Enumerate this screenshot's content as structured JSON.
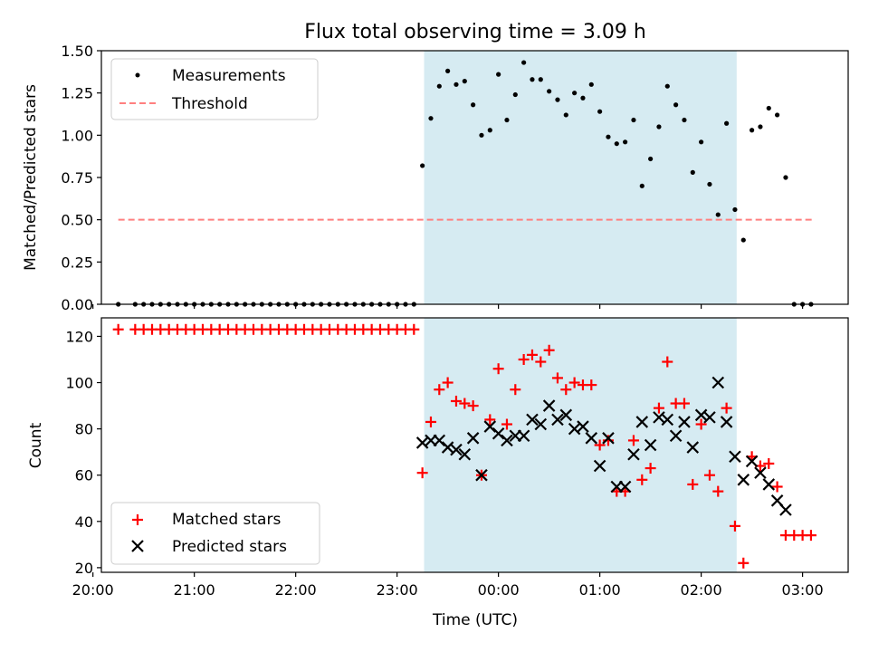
{
  "chart_data": [
    {
      "type": "scatter",
      "title": "Flux total observing time = 3.09 h",
      "xlabel": "",
      "ylabel": "Matched/Predicted stars",
      "ylim": [
        0,
        1.5
      ],
      "yticks": [
        "0.00",
        "0.25",
        "0.50",
        "0.75",
        "1.00",
        "1.25",
        "1.50"
      ],
      "xlim": [
        "20:05",
        "03:27"
      ],
      "grid": false,
      "legend_location": "upper-left",
      "shaded_interval": {
        "start": "23:16",
        "end": "02:21",
        "color": "#add8e6"
      },
      "threshold": {
        "name": "Threshold",
        "value": 0.5,
        "x_start": "20:15",
        "x_end": "03:07",
        "color": "#ff7f7f"
      },
      "series": [
        {
          "name": "Measurements",
          "color": "#000000",
          "x": [
            "20:15",
            "20:25",
            "20:30",
            "20:35",
            "20:40",
            "20:45",
            "20:50",
            "20:55",
            "21:00",
            "21:05",
            "21:10",
            "21:15",
            "21:20",
            "21:25",
            "21:30",
            "21:35",
            "21:40",
            "21:45",
            "21:50",
            "21:55",
            "22:00",
            "22:05",
            "22:10",
            "22:15",
            "22:20",
            "22:25",
            "22:30",
            "22:35",
            "22:40",
            "22:45",
            "22:50",
            "22:55",
            "23:00",
            "23:05",
            "23:10",
            "23:15",
            "23:20",
            "23:25",
            "23:30",
            "23:35",
            "23:40",
            "23:45",
            "23:50",
            "23:55",
            "00:00",
            "00:05",
            "00:10",
            "00:15",
            "00:20",
            "00:25",
            "00:30",
            "00:35",
            "00:40",
            "00:45",
            "00:50",
            "00:55",
            "01:00",
            "01:05",
            "01:10",
            "01:15",
            "01:20",
            "01:25",
            "01:30",
            "01:35",
            "01:40",
            "01:45",
            "01:50",
            "01:55",
            "02:00",
            "02:05",
            "02:10",
            "02:15",
            "02:20",
            "02:25",
            "02:30",
            "02:35",
            "02:40",
            "02:45",
            "02:50",
            "02:55",
            "03:00",
            "03:05"
          ],
          "y": [
            0,
            0,
            0,
            0,
            0,
            0,
            0,
            0,
            0,
            0,
            0,
            0,
            0,
            0,
            0,
            0,
            0,
            0,
            0,
            0,
            0,
            0,
            0,
            0,
            0,
            0,
            0,
            0,
            0,
            0,
            0,
            0,
            0,
            0,
            0,
            0.82,
            1.1,
            1.29,
            1.38,
            1.3,
            1.32,
            1.18,
            1.0,
            1.03,
            1.36,
            1.09,
            1.24,
            1.43,
            1.33,
            1.33,
            1.26,
            1.21,
            1.12,
            1.25,
            1.22,
            1.3,
            1.14,
            0.99,
            0.95,
            0.96,
            1.09,
            0.7,
            0.86,
            1.05,
            1.29,
            1.18,
            1.09,
            0.78,
            0.96,
            0.71,
            0.53,
            1.07,
            0.56,
            0.38,
            1.03,
            1.05,
            1.16,
            1.12,
            0.75,
            0,
            0,
            0
          ]
        }
      ]
    },
    {
      "type": "scatter",
      "title": "",
      "xlabel": "Time (UTC)",
      "ylabel": "Count",
      "ylim": [
        18,
        128
      ],
      "yticks": [
        "20",
        "40",
        "60",
        "80",
        "100",
        "120"
      ],
      "xlim": [
        "20:05",
        "03:27"
      ],
      "xticks": [
        "20:00",
        "21:00",
        "22:00",
        "23:00",
        "00:00",
        "01:00",
        "02:00",
        "03:00"
      ],
      "grid": false,
      "legend_location": "lower-left",
      "shaded_interval": {
        "start": "23:16",
        "end": "02:21",
        "color": "#add8e6"
      },
      "series": [
        {
          "name": "Matched stars",
          "marker": "plus",
          "color": "#ff0000",
          "x": [
            "20:15",
            "20:25",
            "20:30",
            "20:35",
            "20:40",
            "20:45",
            "20:50",
            "20:55",
            "21:00",
            "21:05",
            "21:10",
            "21:15",
            "21:20",
            "21:25",
            "21:30",
            "21:35",
            "21:40",
            "21:45",
            "21:50",
            "21:55",
            "22:00",
            "22:05",
            "22:10",
            "22:15",
            "22:20",
            "22:25",
            "22:30",
            "22:35",
            "22:40",
            "22:45",
            "22:50",
            "22:55",
            "23:00",
            "23:05",
            "23:10",
            "23:15",
            "23:20",
            "23:25",
            "23:30",
            "23:35",
            "23:40",
            "23:45",
            "23:50",
            "23:55",
            "00:00",
            "00:05",
            "00:10",
            "00:15",
            "00:20",
            "00:25",
            "00:30",
            "00:35",
            "00:40",
            "00:45",
            "00:50",
            "00:55",
            "01:00",
            "01:05",
            "01:10",
            "01:15",
            "01:20",
            "01:25",
            "01:30",
            "01:35",
            "01:40",
            "01:45",
            "01:50",
            "01:55",
            "02:00",
            "02:05",
            "02:10",
            "02:15",
            "02:20",
            "02:25",
            "02:30",
            "02:35",
            "02:40",
            "02:45",
            "02:50",
            "02:55",
            "03:00",
            "03:05"
          ],
          "y": [
            123,
            123,
            123,
            123,
            123,
            123,
            123,
            123,
            123,
            123,
            123,
            123,
            123,
            123,
            123,
            123,
            123,
            123,
            123,
            123,
            123,
            123,
            123,
            123,
            123,
            123,
            123,
            123,
            123,
            123,
            123,
            123,
            123,
            123,
            123,
            61,
            83,
            97,
            100,
            92,
            91,
            90,
            60,
            84,
            106,
            82,
            97,
            110,
            112,
            109,
            114,
            102,
            97,
            100,
            99,
            99,
            73,
            75,
            53,
            53,
            75,
            58,
            63,
            89,
            109,
            91,
            91,
            56,
            82,
            60,
            53,
            89,
            38,
            22,
            68,
            64,
            65,
            55,
            34,
            34,
            34,
            34
          ]
        },
        {
          "name": "Predicted stars",
          "marker": "x",
          "color": "#000000",
          "x": [
            "23:15",
            "23:20",
            "23:25",
            "23:30",
            "23:35",
            "23:40",
            "23:45",
            "23:50",
            "23:55",
            "00:00",
            "00:05",
            "00:10",
            "00:15",
            "00:20",
            "00:25",
            "00:30",
            "00:35",
            "00:40",
            "00:45",
            "00:50",
            "00:55",
            "01:00",
            "01:05",
            "01:10",
            "01:15",
            "01:20",
            "01:25",
            "01:30",
            "01:35",
            "01:40",
            "01:45",
            "01:50",
            "01:55",
            "02:00",
            "02:05",
            "02:10",
            "02:15",
            "02:20",
            "02:25",
            "02:30",
            "02:35",
            "02:40",
            "02:45",
            "02:50"
          ],
          "y": [
            74,
            75,
            75,
            72,
            71,
            69,
            76,
            60,
            81,
            78,
            75,
            77,
            77,
            84,
            82,
            90,
            84,
            86,
            80,
            81,
            76,
            64,
            76,
            55,
            55,
            69,
            83,
            73,
            85,
            84,
            77,
            83,
            72,
            86,
            85,
            100,
            83,
            68,
            58,
            66,
            61,
            56,
            49,
            45
          ]
        }
      ]
    }
  ]
}
